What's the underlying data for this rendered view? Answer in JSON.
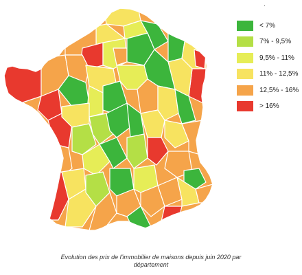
{
  "colors": {
    "very_low": "#3cb53c",
    "low": "#b4df46",
    "mid_low": "#e6ed57",
    "mid": "#f7e360",
    "high": "#f5a44a",
    "very_high": "#e8392e",
    "border": "#ffffff"
  },
  "legend": {
    "marker": ".",
    "items": [
      {
        "label": "< 7%",
        "color": "#3cb53c"
      },
      {
        "label": "7% - 9,5%",
        "color": "#b4df46"
      },
      {
        "label": "9,5% - 11%",
        "color": "#e6ed57"
      },
      {
        "label": "11% - 12,5%",
        "color": "#f7e360"
      },
      {
        "label": "12,5% - 16%",
        "color": "#f5a44a"
      },
      {
        "label": "> 16%",
        "color": "#e8392e"
      }
    ]
  },
  "caption": {
    "line1": "Evolution des prix de l'immobilier de maisons depuis juin 2020 par",
    "line2": "département"
  }
}
